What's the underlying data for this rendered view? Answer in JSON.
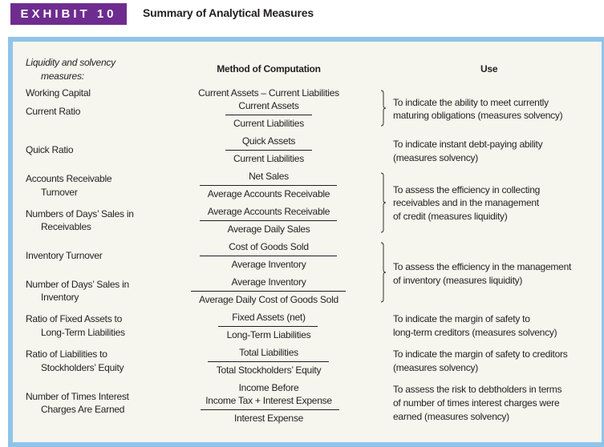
{
  "exhibit": {
    "badge": "EXHIBIT 10",
    "title": "Summary of Analytical Measures"
  },
  "headers": {
    "section": [
      "Liquidity and solvency",
      "measures:"
    ],
    "method": "Method of Computation",
    "use": "Use"
  },
  "measures": [
    {
      "name": [
        "Working Capital"
      ],
      "method": {
        "formula": "Current Assets – Current Liabilities"
      }
    },
    {
      "name": [
        "Current Ratio"
      ],
      "method": {
        "numerator": "Current Assets",
        "denominator": "Current Liabilities"
      }
    },
    {
      "name": [
        "Quick Ratio"
      ],
      "method": {
        "numerator": "Quick Assets",
        "denominator": "Current Liabilities"
      }
    },
    {
      "name": [
        "Accounts Receivable",
        "Turnover"
      ],
      "method": {
        "numerator": "Net Sales",
        "denominator": "Average Accounts Receivable"
      }
    },
    {
      "name": [
        "Numbers of Days’ Sales in",
        "Receivables"
      ],
      "method": {
        "numerator": "Average Accounts Receivable",
        "denominator": "Average Daily Sales"
      }
    },
    {
      "name": [
        "Inventory Turnover"
      ],
      "method": {
        "numerator": "Cost of Goods Sold",
        "denominator": "Average Inventory"
      }
    },
    {
      "name": [
        "Number of Days’ Sales in",
        "Inventory"
      ],
      "method": {
        "numerator": "Average Inventory",
        "denominator": "Average Daily Cost of Goods Sold"
      }
    },
    {
      "name": [
        "Ratio of Fixed Assets to",
        "Long-Term Liabilities"
      ],
      "method": {
        "numerator": "Fixed Assets (net)",
        "denominator": "Long-Term Liabilities"
      }
    },
    {
      "name": [
        "Ratio of Liabilities to",
        "Stockholders’ Equity"
      ],
      "method": {
        "numerator": "Total Liabilities",
        "denominator": "Total Stockholders’ Equity"
      }
    },
    {
      "name": [
        "Number of Times Interest",
        "Charges Are Earned"
      ],
      "method": {
        "numerator": [
          "Income Before",
          "Income Tax + Interest Expense"
        ],
        "denominator": "Interest Expense"
      }
    }
  ],
  "uses": [
    [
      "To indicate the ability to meet currently",
      "maturing obligations (measures solvency)"
    ],
    [
      "To indicate instant debt-paying ability",
      "(measures solvency)"
    ],
    [
      "To assess the efficiency in collecting",
      "receivables and in the management",
      "of credit (measures liquidity)"
    ],
    [
      "To assess the efficiency in the management",
      "of inventory (measures liquidity)"
    ],
    [
      "To indicate the margin of safety to",
      "long-term creditors (measures solvency)"
    ],
    [
      "To indicate the margin of safety to creditors",
      "(measures solvency)"
    ],
    [
      "To assess the risk to debtholders in terms",
      "of number of times interest charges were",
      "earned (measures solvency)"
    ]
  ],
  "colors": {
    "badge": "#6f2c8f",
    "panel_border": "#8fc4ea",
    "panel_bg": "#f6f5ee"
  }
}
